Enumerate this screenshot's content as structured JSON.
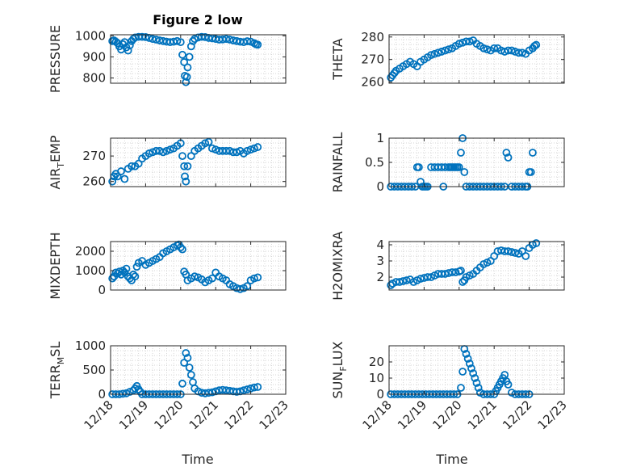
{
  "figure": {
    "title": "Figure 2 low",
    "xlabel_left": "Time",
    "xlabel_right": "Time",
    "x_ticks": [
      "12/18",
      "12/19",
      "12/20",
      "12/21",
      "12/22",
      "12/23"
    ]
  },
  "colors": {
    "marker": "#0072BD",
    "axis": "#262626",
    "grid": "#c8c8c8",
    "background": "#ffffff"
  },
  "chart_data": [
    {
      "type": "scatter",
      "id": "pressure",
      "ylabel": "PRESSURE",
      "title": "Figure 2 low",
      "xlim": [
        0,
        5
      ],
      "ylim": [
        775,
        1005
      ],
      "yticks": [
        800,
        900,
        1000
      ],
      "x": [
        0.05,
        0.1,
        0.15,
        0.2,
        0.25,
        0.3,
        0.35,
        0.4,
        0.45,
        0.5,
        0.55,
        0.6,
        0.65,
        0.7,
        0.8,
        0.9,
        1.0,
        1.1,
        1.2,
        1.3,
        1.4,
        1.5,
        1.6,
        1.7,
        1.8,
        1.9,
        2.0,
        2.05,
        2.1,
        2.12,
        2.15,
        2.18,
        2.2,
        2.25,
        2.3,
        2.35,
        2.4,
        2.5,
        2.6,
        2.7,
        2.8,
        2.9,
        3.0,
        3.1,
        3.2,
        3.3,
        3.4,
        3.5,
        3.6,
        3.7,
        3.8,
        3.9,
        4.0,
        4.1,
        4.15,
        4.2
      ],
      "y": [
        975,
        978,
        972,
        965,
        950,
        935,
        960,
        970,
        945,
        930,
        955,
        975,
        985,
        992,
        995,
        995,
        994,
        990,
        985,
        982,
        978,
        975,
        972,
        970,
        972,
        975,
        970,
        910,
        875,
        810,
        780,
        805,
        850,
        900,
        950,
        975,
        985,
        992,
        995,
        994,
        990,
        988,
        985,
        982,
        983,
        985,
        982,
        978,
        975,
        972,
        970,
        974,
        972,
        965,
        960,
        958
      ]
    },
    {
      "type": "scatter",
      "id": "theta",
      "ylabel": "THETA",
      "xlim": [
        0,
        5
      ],
      "ylim": [
        259.5,
        281
      ],
      "yticks": [
        260,
        270,
        280
      ],
      "x": [
        0.05,
        0.1,
        0.15,
        0.2,
        0.3,
        0.4,
        0.5,
        0.6,
        0.7,
        0.8,
        0.9,
        1.0,
        1.1,
        1.2,
        1.3,
        1.4,
        1.5,
        1.6,
        1.7,
        1.8,
        1.9,
        2.0,
        2.1,
        2.2,
        2.3,
        2.4,
        2.5,
        2.6,
        2.7,
        2.8,
        2.9,
        3.0,
        3.1,
        3.2,
        3.3,
        3.4,
        3.5,
        3.6,
        3.7,
        3.8,
        3.9,
        4.0,
        4.1,
        4.15,
        4.2
      ],
      "y": [
        262,
        263,
        264,
        265,
        266,
        267,
        268,
        269,
        268,
        267,
        269,
        270,
        271,
        272,
        272.5,
        273,
        273.5,
        274,
        274.5,
        275,
        276,
        277,
        277.5,
        278,
        278,
        278.5,
        277,
        276,
        275,
        274.5,
        274,
        275,
        275,
        274,
        273.5,
        274,
        274,
        273.5,
        273,
        273,
        272.5,
        274,
        275,
        276,
        276.5
      ]
    },
    {
      "type": "scatter",
      "id": "air_temp",
      "ylabel": "AIR_TEMP",
      "xlim": [
        0,
        5
      ],
      "ylim": [
        258,
        277
      ],
      "yticks": [
        260,
        270
      ],
      "x": [
        0.05,
        0.1,
        0.15,
        0.2,
        0.3,
        0.4,
        0.5,
        0.6,
        0.7,
        0.8,
        0.9,
        1.0,
        1.1,
        1.2,
        1.3,
        1.4,
        1.5,
        1.6,
        1.7,
        1.8,
        1.9,
        2.0,
        2.05,
        2.1,
        2.12,
        2.15,
        2.2,
        2.3,
        2.4,
        2.5,
        2.6,
        2.7,
        2.8,
        2.9,
        3.0,
        3.1,
        3.2,
        3.3,
        3.4,
        3.5,
        3.6,
        3.7,
        3.8,
        3.9,
        4.0,
        4.1,
        4.2
      ],
      "y": [
        260,
        262,
        263,
        262,
        264,
        261,
        265,
        266,
        266,
        267,
        269,
        270,
        271,
        271.5,
        272,
        272,
        271.5,
        272,
        272.5,
        273,
        274,
        275,
        270,
        266,
        262,
        260,
        266,
        270,
        272,
        273,
        274,
        275,
        275.5,
        273,
        272.5,
        272,
        272,
        272,
        272,
        271.5,
        271.5,
        272,
        271,
        272,
        272.5,
        273,
        273.5
      ]
    },
    {
      "type": "scatter",
      "id": "rainfall",
      "ylabel": "RAINFALL",
      "xlim": [
        0,
        5
      ],
      "ylim": [
        0,
        1
      ],
      "yticks": [
        0,
        0.5,
        1
      ],
      "x": [
        0.05,
        0.15,
        0.25,
        0.35,
        0.45,
        0.55,
        0.65,
        0.75,
        0.8,
        0.85,
        0.9,
        0.95,
        1.0,
        1.05,
        1.1,
        1.2,
        1.3,
        1.4,
        1.5,
        1.55,
        1.6,
        1.7,
        1.75,
        1.8,
        1.85,
        1.9,
        1.95,
        2.0,
        2.05,
        2.1,
        2.15,
        2.2,
        2.3,
        2.4,
        2.5,
        2.6,
        2.7,
        2.8,
        2.9,
        3.0,
        3.1,
        3.2,
        3.3,
        3.35,
        3.4,
        3.5,
        3.6,
        3.7,
        3.8,
        3.9,
        3.95,
        4.0,
        4.05,
        4.1
      ],
      "y": [
        0,
        0,
        0,
        0,
        0,
        0,
        0,
        0,
        0.4,
        0.4,
        0.1,
        0,
        0,
        0,
        0,
        0.4,
        0.4,
        0.4,
        0.4,
        0,
        0.4,
        0.4,
        0.4,
        0.4,
        0.4,
        0.4,
        0.4,
        0.4,
        0.7,
        1.0,
        0.3,
        0,
        0,
        0,
        0,
        0,
        0,
        0,
        0,
        0,
        0,
        0,
        0,
        0.7,
        0.6,
        0,
        0,
        0,
        0,
        0,
        0,
        0.3,
        0.3,
        0.7
      ]
    },
    {
      "type": "scatter",
      "id": "mixdepth",
      "ylabel": "MIXDEPTH",
      "xlim": [
        0,
        5
      ],
      "ylim": [
        0,
        2500
      ],
      "yticks": [
        0,
        1000,
        2000
      ],
      "x": [
        0.05,
        0.1,
        0.15,
        0.2,
        0.25,
        0.3,
        0.35,
        0.4,
        0.45,
        0.5,
        0.55,
        0.6,
        0.65,
        0.7,
        0.75,
        0.8,
        0.9,
        1.0,
        1.1,
        1.2,
        1.3,
        1.4,
        1.5,
        1.6,
        1.7,
        1.8,
        1.9,
        1.95,
        2.0,
        2.05,
        2.1,
        2.15,
        2.2,
        2.3,
        2.4,
        2.5,
        2.6,
        2.7,
        2.8,
        2.9,
        3.0,
        3.1,
        3.2,
        3.3,
        3.4,
        3.5,
        3.6,
        3.7,
        3.8,
        3.9,
        4.0,
        4.1,
        4.2
      ],
      "y": [
        600,
        700,
        900,
        850,
        950,
        800,
        1000,
        900,
        1100,
        700,
        600,
        500,
        800,
        700,
        1200,
        1400,
        1500,
        1300,
        1400,
        1500,
        1600,
        1700,
        1900,
        2000,
        2100,
        2200,
        2300,
        2350,
        2200,
        2100,
        950,
        800,
        500,
        600,
        700,
        650,
        550,
        400,
        500,
        600,
        900,
        700,
        600,
        500,
        300,
        200,
        100,
        50,
        100,
        200,
        500,
        600,
        650
      ]
    },
    {
      "type": "scatter",
      "id": "h2omixra",
      "ylabel": "H2OMIXRA",
      "xlim": [
        0,
        5
      ],
      "ylim": [
        1.2,
        4.2
      ],
      "yticks": [
        2,
        3,
        4
      ],
      "x": [
        0.05,
        0.1,
        0.2,
        0.3,
        0.4,
        0.5,
        0.6,
        0.7,
        0.8,
        0.9,
        1.0,
        1.1,
        1.2,
        1.3,
        1.4,
        1.5,
        1.6,
        1.7,
        1.8,
        1.9,
        2.0,
        2.05,
        2.1,
        2.15,
        2.2,
        2.3,
        2.4,
        2.5,
        2.6,
        2.7,
        2.8,
        2.9,
        3.0,
        3.1,
        3.2,
        3.3,
        3.4,
        3.5,
        3.6,
        3.7,
        3.8,
        3.9,
        4.0,
        4.1,
        4.2
      ],
      "y": [
        1.5,
        1.6,
        1.7,
        1.7,
        1.75,
        1.8,
        1.85,
        1.7,
        1.8,
        1.9,
        1.95,
        2.0,
        2.0,
        2.1,
        2.2,
        2.2,
        2.2,
        2.25,
        2.3,
        2.3,
        2.35,
        2.4,
        1.7,
        1.8,
        2.0,
        2.1,
        2.2,
        2.4,
        2.6,
        2.8,
        2.9,
        3.0,
        3.3,
        3.6,
        3.65,
        3.6,
        3.6,
        3.55,
        3.5,
        3.45,
        3.6,
        3.3,
        3.8,
        4.0,
        4.1
      ]
    },
    {
      "type": "scatter",
      "id": "terr_msl",
      "ylabel": "TERR_MSL",
      "xlim": [
        0,
        5
      ],
      "ylim": [
        0,
        1000
      ],
      "yticks": [
        0,
        500,
        1000
      ],
      "x": [
        0.05,
        0.15,
        0.25,
        0.35,
        0.45,
        0.55,
        0.65,
        0.7,
        0.75,
        0.8,
        0.85,
        0.9,
        1.0,
        1.1,
        1.2,
        1.3,
        1.4,
        1.5,
        1.6,
        1.7,
        1.8,
        1.9,
        2.0,
        2.05,
        2.1,
        2.15,
        2.2,
        2.25,
        2.3,
        2.35,
        2.4,
        2.5,
        2.6,
        2.7,
        2.8,
        2.9,
        3.0,
        3.1,
        3.2,
        3.3,
        3.4,
        3.5,
        3.6,
        3.7,
        3.8,
        3.9,
        4.0,
        4.1,
        4.2
      ],
      "y": [
        0,
        0,
        0,
        10,
        20,
        50,
        80,
        120,
        170,
        100,
        50,
        0,
        0,
        0,
        0,
        0,
        0,
        0,
        0,
        0,
        0,
        0,
        0,
        220,
        650,
        850,
        750,
        550,
        400,
        250,
        120,
        60,
        30,
        20,
        30,
        40,
        60,
        80,
        90,
        80,
        70,
        60,
        50,
        60,
        80,
        100,
        120,
        140,
        150
      ]
    },
    {
      "type": "scatter",
      "id": "sun_flux",
      "ylabel": "SUN_FLUX",
      "xlim": [
        0,
        5
      ],
      "ylim": [
        0,
        30
      ],
      "yticks": [
        0,
        10,
        20
      ],
      "x": [
        0.05,
        0.15,
        0.25,
        0.35,
        0.45,
        0.55,
        0.65,
        0.75,
        0.85,
        0.95,
        1.05,
        1.15,
        1.25,
        1.35,
        1.45,
        1.55,
        1.65,
        1.75,
        1.85,
        1.95,
        2.05,
        2.1,
        2.15,
        2.2,
        2.25,
        2.3,
        2.35,
        2.4,
        2.45,
        2.5,
        2.55,
        2.6,
        2.7,
        2.8,
        2.9,
        3.0,
        3.05,
        3.1,
        3.15,
        3.2,
        3.25,
        3.3,
        3.35,
        3.4,
        3.5,
        3.6,
        3.7,
        3.8,
        3.9,
        4.0
      ],
      "y": [
        0,
        0,
        0,
        0,
        0,
        0,
        0,
        0,
        0,
        0,
        0,
        0,
        0,
        0,
        0,
        0,
        0,
        0,
        0,
        0,
        4,
        14,
        28,
        25,
        22,
        19,
        16,
        13,
        10,
        7,
        4,
        1,
        0,
        0,
        0,
        0,
        2,
        4,
        6,
        8,
        10,
        12,
        8,
        6,
        1,
        0,
        0,
        0,
        0,
        0
      ]
    }
  ]
}
